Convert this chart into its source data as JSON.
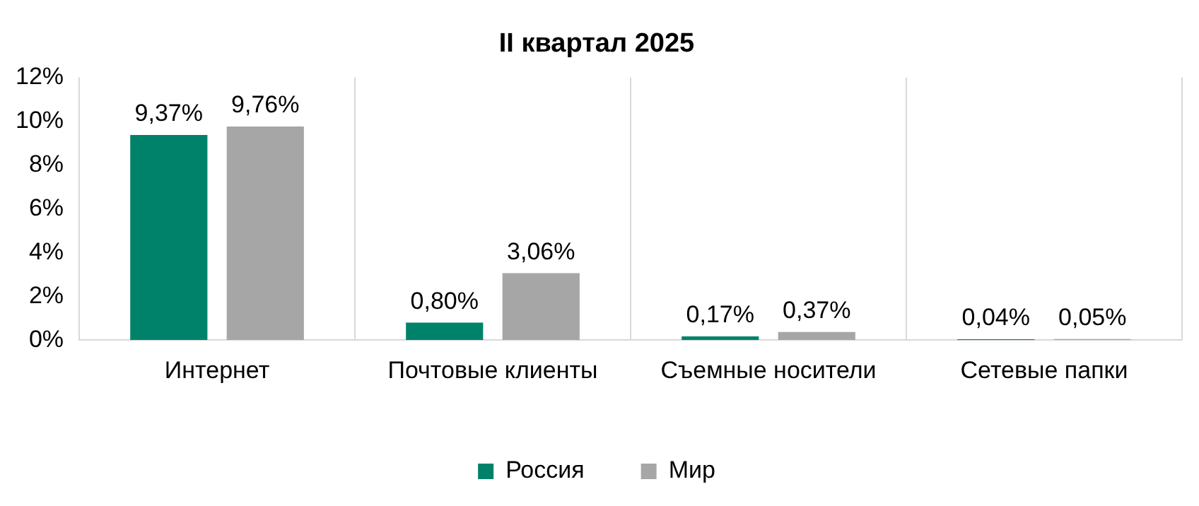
{
  "chart_data": {
    "type": "bar",
    "title": "II квартал 2025",
    "categories": [
      "Интернет",
      "Почтовые клиенты",
      "Съемные носители",
      "Сетевые папки"
    ],
    "series": [
      {
        "name": "Россия",
        "color": "#00826a",
        "values": [
          9.37,
          0.8,
          0.17,
          0.04
        ],
        "value_labels": [
          "9,37%",
          "0,80%",
          "0,17%",
          "0,04%"
        ]
      },
      {
        "name": "Мир",
        "color": "#a6a6a6",
        "values": [
          9.76,
          3.06,
          0.37,
          0.05
        ],
        "value_labels": [
          "9,76%",
          "3,06%",
          "0,37%",
          "0,05%"
        ]
      }
    ],
    "ylim": [
      0,
      12
    ],
    "yticks": [
      {
        "value": 0,
        "label": "0%"
      },
      {
        "value": 2,
        "label": "2%"
      },
      {
        "value": 4,
        "label": "4%"
      },
      {
        "value": 6,
        "label": "6%"
      },
      {
        "value": 8,
        "label": "8%"
      },
      {
        "value": 10,
        "label": "10%"
      },
      {
        "value": 12,
        "label": "12%"
      }
    ],
    "grid": "x",
    "legend": "bottom"
  }
}
